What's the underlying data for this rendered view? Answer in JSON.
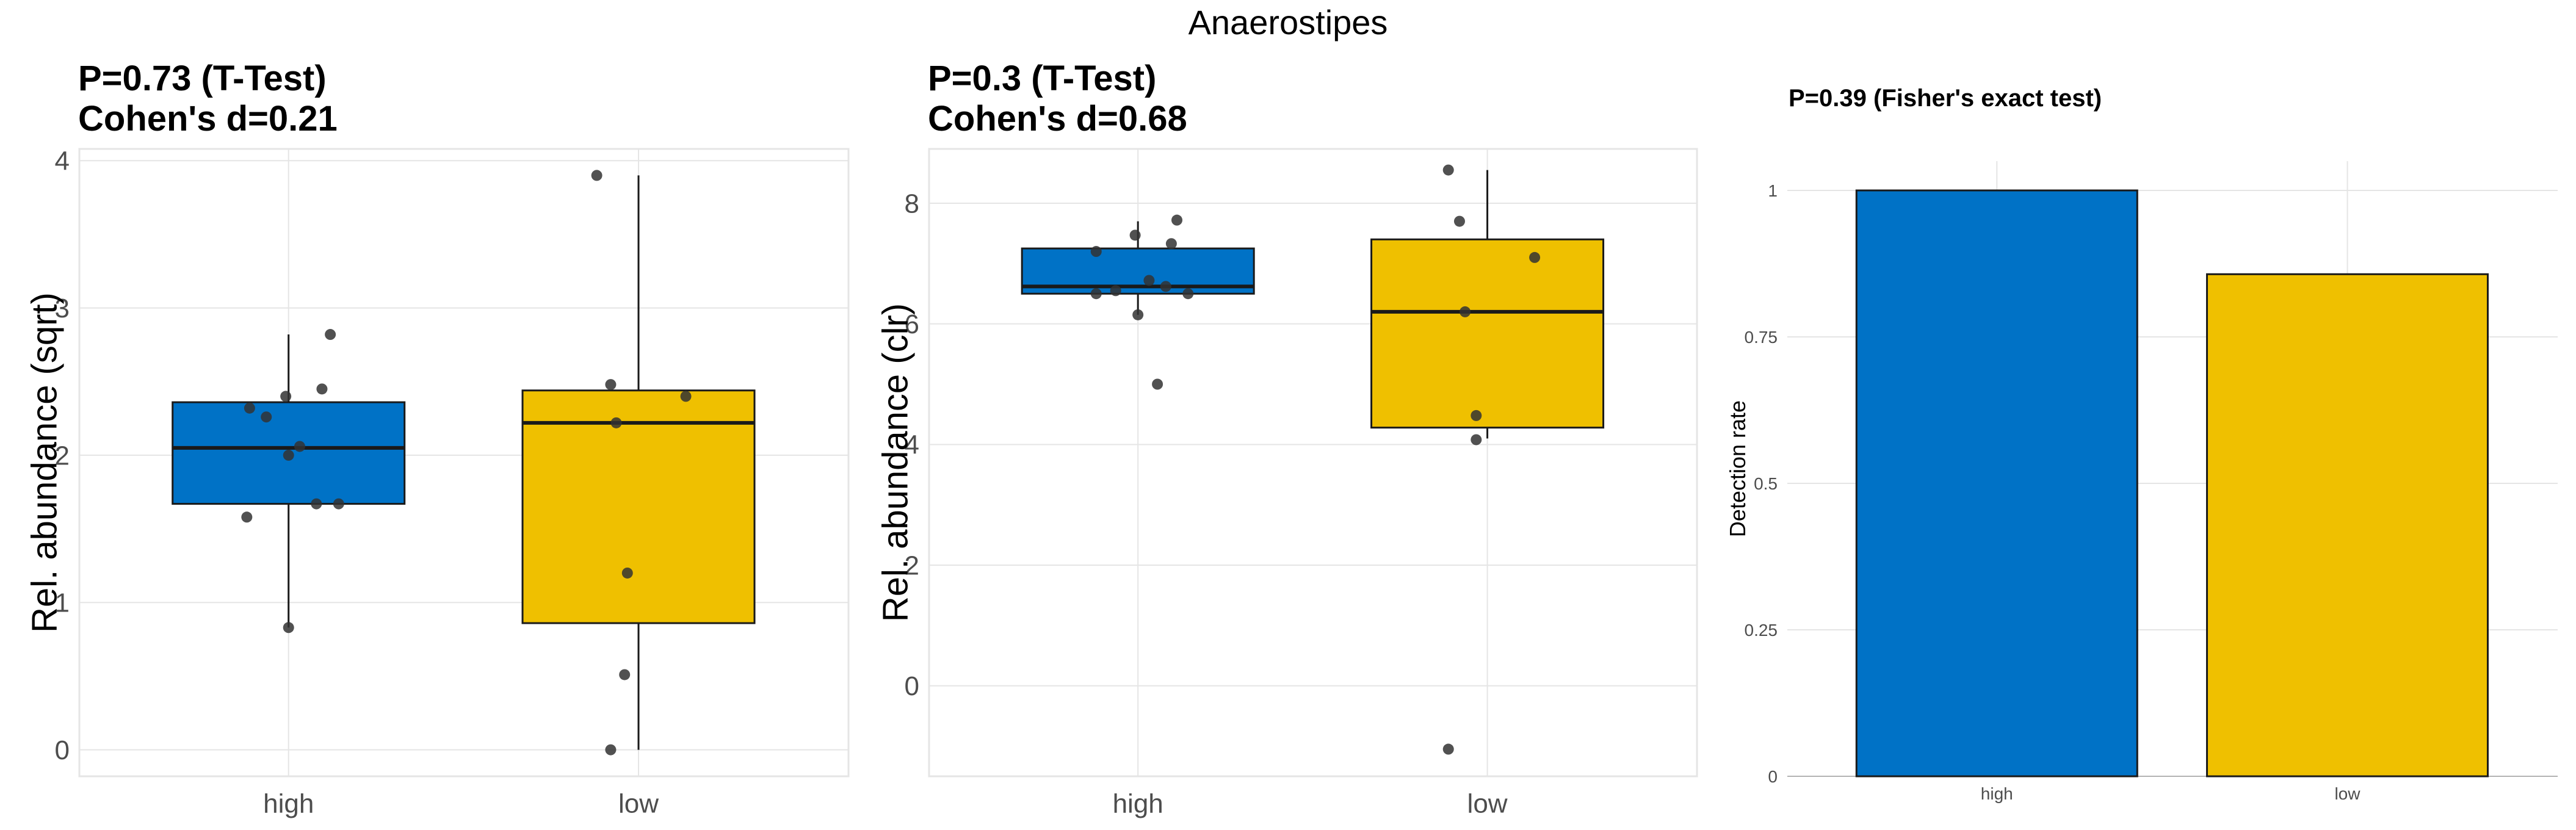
{
  "figure": {
    "title": "Anaerostipes"
  },
  "colors": {
    "high": "#0072C6",
    "low": "#EFC000",
    "outline": "#1a1a1a",
    "grid": "#e5e5e5",
    "point": "#333333"
  },
  "chart_data": [
    {
      "type": "box",
      "title_lines": [
        "P=0.73 (T-Test)",
        "Cohen's d=0.21"
      ],
      "xlabel": "",
      "ylabel": "Rel. abundance (sqrt)",
      "categories": [
        "high",
        "low"
      ],
      "ylim": [
        -0.18,
        4.08
      ],
      "yticks": [
        0,
        1,
        2,
        3,
        4
      ],
      "ytick_labels": [
        "0",
        "1",
        "2",
        "3",
        "4"
      ],
      "boxes": [
        {
          "category": "high",
          "q1": 1.67,
          "median": 2.05,
          "q3": 2.36,
          "whisker_low": 0.83,
          "whisker_high": 2.82
        },
        {
          "category": "low",
          "q1": 0.86,
          "median": 2.22,
          "q3": 2.44,
          "whisker_low": 0.0,
          "whisker_high": 3.9
        }
      ],
      "points": [
        {
          "category": "high",
          "jitter": 0.0,
          "y": 0.83
        },
        {
          "category": "high",
          "jitter": -0.15,
          "y": 1.58
        },
        {
          "category": "high",
          "jitter": 0.1,
          "y": 1.67
        },
        {
          "category": "high",
          "jitter": 0.18,
          "y": 1.67
        },
        {
          "category": "high",
          "jitter": 0.0,
          "y": 2.0
        },
        {
          "category": "high",
          "jitter": 0.04,
          "y": 2.06
        },
        {
          "category": "high",
          "jitter": -0.08,
          "y": 2.26
        },
        {
          "category": "high",
          "jitter": -0.14,
          "y": 2.32
        },
        {
          "category": "high",
          "jitter": -0.01,
          "y": 2.4
        },
        {
          "category": "high",
          "jitter": 0.12,
          "y": 2.45
        },
        {
          "category": "high",
          "jitter": 0.15,
          "y": 2.82
        },
        {
          "category": "low",
          "jitter": -0.1,
          "y": 0.0
        },
        {
          "category": "low",
          "jitter": -0.05,
          "y": 0.51
        },
        {
          "category": "low",
          "jitter": -0.04,
          "y": 1.2
        },
        {
          "category": "low",
          "jitter": -0.08,
          "y": 2.22
        },
        {
          "category": "low",
          "jitter": 0.17,
          "y": 2.4
        },
        {
          "category": "low",
          "jitter": -0.1,
          "y": 2.48
        },
        {
          "category": "low",
          "jitter": -0.15,
          "y": 3.9
        }
      ],
      "grid": true
    },
    {
      "type": "box",
      "title_lines": [
        "P=0.3 (T-Test)",
        "Cohen's d=0.68"
      ],
      "xlabel": "",
      "ylabel": "Rel. abundance (clr)",
      "categories": [
        "high",
        "low"
      ],
      "ylim": [
        -1.5,
        8.9
      ],
      "yticks": [
        0,
        2,
        4,
        6,
        8
      ],
      "ytick_labels": [
        "0",
        "2",
        "4",
        "6",
        "8"
      ],
      "boxes": [
        {
          "category": "high",
          "q1": 6.5,
          "median": 6.62,
          "q3": 7.25,
          "whisker_low": 6.15,
          "whisker_high": 7.7
        },
        {
          "category": "low",
          "q1": 4.28,
          "median": 6.2,
          "q3": 7.4,
          "whisker_low": 4.1,
          "whisker_high": 8.55
        }
      ],
      "points": [
        {
          "category": "high",
          "jitter": 0.07,
          "y": 5.0
        },
        {
          "category": "high",
          "jitter": 0.0,
          "y": 6.15
        },
        {
          "category": "high",
          "jitter": -0.15,
          "y": 6.5
        },
        {
          "category": "high",
          "jitter": 0.18,
          "y": 6.5
        },
        {
          "category": "high",
          "jitter": -0.08,
          "y": 6.55
        },
        {
          "category": "high",
          "jitter": 0.1,
          "y": 6.62
        },
        {
          "category": "high",
          "jitter": 0.04,
          "y": 6.72
        },
        {
          "category": "high",
          "jitter": -0.15,
          "y": 7.2
        },
        {
          "category": "high",
          "jitter": 0.12,
          "y": 7.33
        },
        {
          "category": "high",
          "jitter": -0.01,
          "y": 7.47
        },
        {
          "category": "high",
          "jitter": 0.14,
          "y": 7.72
        },
        {
          "category": "low",
          "jitter": -0.14,
          "y": -1.05
        },
        {
          "category": "low",
          "jitter": -0.04,
          "y": 4.08
        },
        {
          "category": "low",
          "jitter": -0.04,
          "y": 4.48
        },
        {
          "category": "low",
          "jitter": -0.08,
          "y": 6.2
        },
        {
          "category": "low",
          "jitter": 0.17,
          "y": 7.1
        },
        {
          "category": "low",
          "jitter": -0.1,
          "y": 7.7
        },
        {
          "category": "low",
          "jitter": -0.14,
          "y": 8.55
        }
      ],
      "grid": true
    },
    {
      "type": "bar",
      "title_lines": [
        "P=0.39 (Fisher's exact test)"
      ],
      "xlabel": "",
      "ylabel": "Detection rate",
      "categories": [
        "high",
        "low"
      ],
      "values": [
        1.0,
        0.857
      ],
      "ylim": [
        0,
        1.05
      ],
      "yticks": [
        0,
        0.25,
        0.5,
        0.75,
        1
      ],
      "ytick_labels": [
        "0",
        "0.25",
        "0.5",
        "0.75",
        "1"
      ],
      "grid": true
    }
  ]
}
